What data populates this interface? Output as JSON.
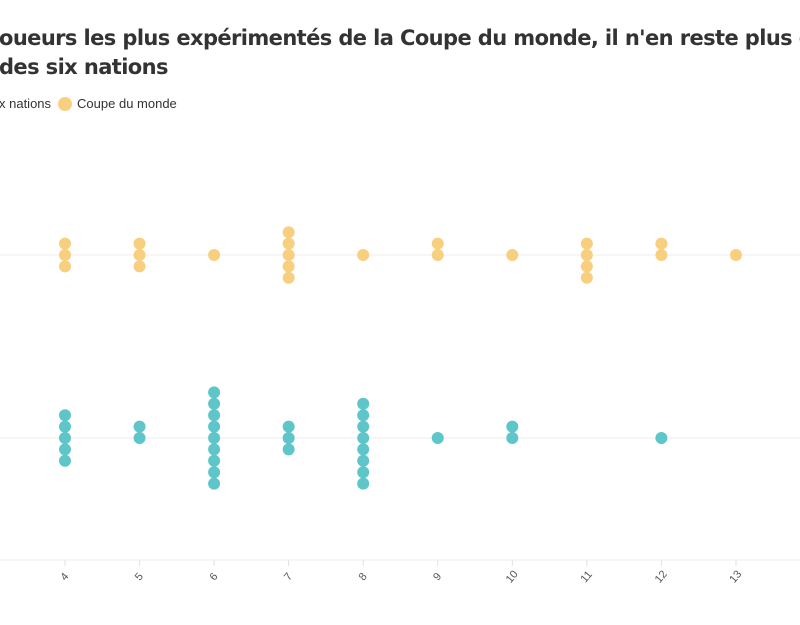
{
  "chart_data": {
    "type": "scatter",
    "title": "oueurs les plus expérimentés de la Coupe du monde, il n'en reste plus qu",
    "subtitle": "des six nations",
    "legend_position": "top-left",
    "legend": [
      {
        "label": "x nations",
        "color": "#5ec6c9"
      },
      {
        "label": "Coupe du monde",
        "color": "#f8cf7f"
      }
    ],
    "x_ticks": [
      4,
      5,
      6,
      7,
      8,
      9,
      10,
      11,
      12,
      13
    ],
    "xlim": [
      4,
      13
    ],
    "grid": true,
    "series": [
      {
        "key": "coupe",
        "color": "#f8cf7f",
        "x": [
          4,
          5,
          6,
          7,
          8,
          9,
          10,
          11,
          12,
          13
        ],
        "counts": [
          3,
          3,
          1,
          5,
          1,
          2,
          1,
          4,
          2,
          1
        ]
      },
      {
        "key": "six",
        "color": "#5ec6c9",
        "x": [
          4,
          5,
          6,
          7,
          8,
          9,
          10,
          11,
          12,
          13
        ],
        "counts": [
          5,
          2,
          9,
          3,
          8,
          1,
          2,
          0,
          1,
          0
        ]
      }
    ]
  }
}
